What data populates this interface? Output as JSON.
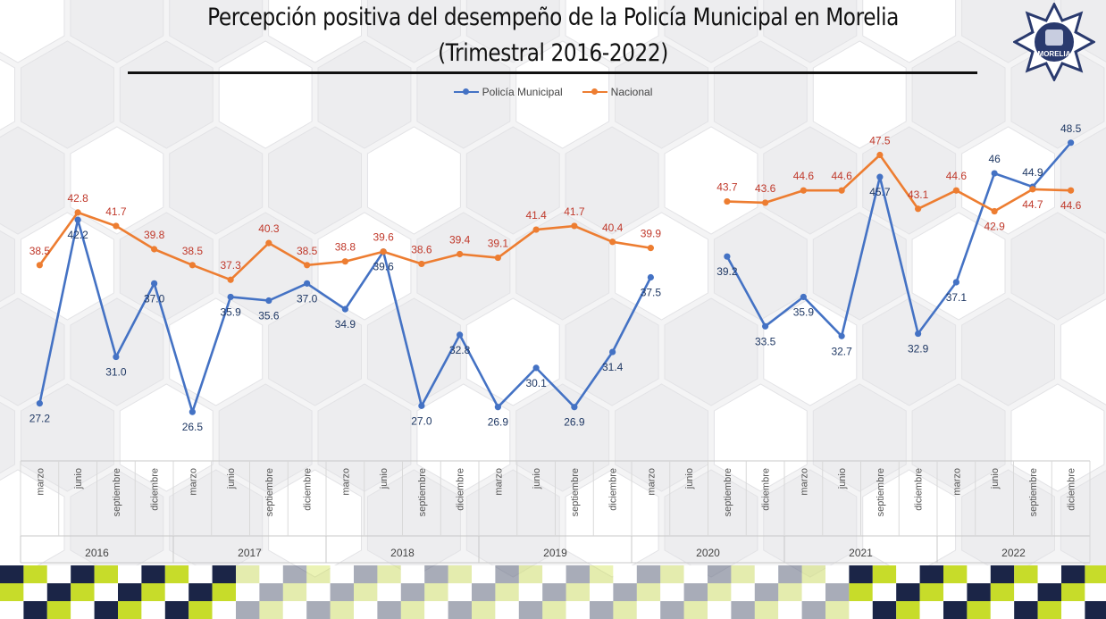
{
  "title_line1": "Percepción positiva del desempeño de la Policía Municipal en Morelia",
  "title_line2": "(Trimestral 2016-2022)",
  "badge_text": "MORELIA",
  "colors": {
    "municipal": "#4472c4",
    "nacional": "#ed7d31",
    "municipal_label": "#1f3864",
    "nacional_label": "#c0392b",
    "strip_dark": "#1b2547",
    "strip_lime": "#c7dc2a"
  },
  "chart_data": {
    "type": "line",
    "title": "Percepción positiva del desempeño de la Policía Municipal en Morelia (Trimestral 2016-2022)",
    "legend_position": "top-center",
    "grid": false,
    "categories": [
      "marzo",
      "junio",
      "septiembre",
      "diciembre",
      "marzo",
      "junio",
      "septiembre",
      "diciembre",
      "marzo",
      "junio",
      "septiembre",
      "diciembre",
      "marzo",
      "junio",
      "septiembre",
      "diciembre",
      "marzo",
      "junio",
      "septiembre",
      "diciembre",
      "marzo",
      "junio",
      "septiembre",
      "diciembre",
      "marzo",
      "junio",
      "septiembre",
      "diciembre"
    ],
    "groups": [
      {
        "label": "2016",
        "count": 4
      },
      {
        "label": "2017",
        "count": 4
      },
      {
        "label": "2018",
        "count": 4
      },
      {
        "label": "2019",
        "count": 4
      },
      {
        "label": "2020",
        "count": 4
      },
      {
        "label": "2021",
        "count": 4
      },
      {
        "label": "2022",
        "count": 4
      }
    ],
    "series": [
      {
        "name": "Policía Municipal",
        "values": [
          27.2,
          42.2,
          31.0,
          37.0,
          26.5,
          35.9,
          35.6,
          37.0,
          34.9,
          39.6,
          27.0,
          32.8,
          26.9,
          30.1,
          26.9,
          31.4,
          37.5,
          null,
          39.2,
          33.5,
          35.9,
          32.7,
          45.7,
          32.9,
          37.1,
          46,
          44.9,
          48.5
        ],
        "labels": [
          "27.2",
          "42.2",
          "31.0",
          "37.0",
          "26.5",
          "35.9",
          "35.6",
          "37.0",
          "34.9",
          "39.6",
          "27.0",
          "32.8",
          "26.9",
          "30.1",
          "26.9",
          "31.4",
          "37.5",
          "",
          "39.2",
          "33.5",
          "35.9",
          "32.7",
          "45.7",
          "32.9",
          "37.1",
          "46",
          "44.9",
          "48.5"
        ]
      },
      {
        "name": "Nacional",
        "values": [
          38.5,
          42.8,
          41.7,
          39.8,
          38.5,
          37.3,
          40.3,
          38.5,
          38.8,
          39.6,
          38.6,
          39.4,
          39.1,
          41.4,
          41.7,
          40.4,
          39.9,
          null,
          43.7,
          43.6,
          44.6,
          44.6,
          47.5,
          43.1,
          44.6,
          42.9,
          44.7,
          44.6
        ],
        "labels": [
          "38.5",
          "42.8",
          "41.7",
          "39.8",
          "38.5",
          "37.3",
          "40.3",
          "38.5",
          "38.8",
          "39.6",
          "38.6",
          "39.4",
          "39.1",
          "41.4",
          "41.7",
          "40.4",
          "39.9",
          "",
          "43.7",
          "43.6",
          "44.6",
          "44.6",
          "47.5",
          "43.1",
          "44.6",
          "42.9",
          "44.7",
          "44.6"
        ]
      }
    ]
  }
}
